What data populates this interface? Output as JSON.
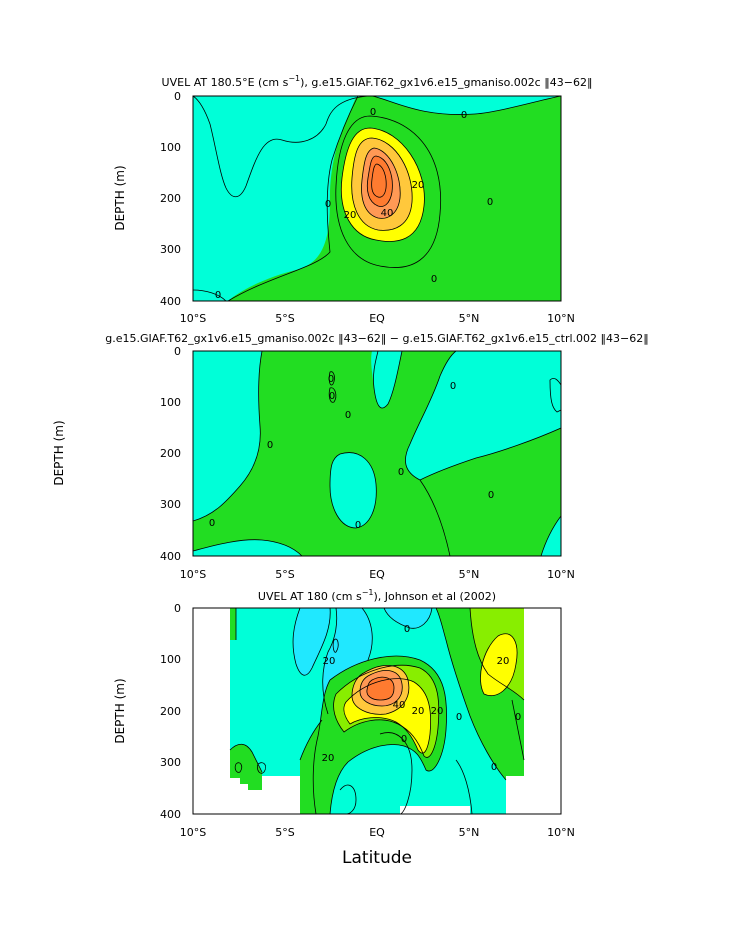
{
  "figure": {
    "xlabel": "Latitude",
    "x_ticks": [
      "10°S",
      "5°S",
      "EQ",
      "5°N",
      "10°N"
    ],
    "y_ticks": [
      "0",
      "100",
      "200",
      "300",
      "400"
    ]
  },
  "colors": {
    "fill_le_0": "#00ffd8",
    "fill_lowest": "#20e8ff",
    "fill_0_20": "#22dd22",
    "fill_20_30": "#88ee00",
    "fill_30_40": "#ffff00",
    "fill_40_50": "#ffc83c",
    "fill_50_60": "#ff9955",
    "fill_gt_60": "#ff7b30",
    "contour_line": "#000000"
  },
  "chart_data": [
    {
      "type": "heatmap",
      "panel": "top",
      "title_main": "UVEL AT 180.5°E (cm s",
      "title_sup": "−1",
      "title_rest": "), g.e15.GIAF.T62_gx1v6.e15_gmaniso.002c ‖43−62‖",
      "ylabel": "DEPTH (m)",
      "xlim": [
        -10,
        10
      ],
      "ylim": [
        400,
        0
      ],
      "contour_labels": [
        "0",
        "0",
        "0",
        "0",
        "0",
        "0",
        "20",
        "20",
        "40"
      ],
      "jet_core": {
        "latitude": 0.2,
        "depth_m": 160,
        "max_cm_s": 70
      }
    },
    {
      "type": "heatmap",
      "panel": "middle",
      "title": "g.e15.GIAF.T62_gx1v6.e15_gmaniso.002c ‖43−62‖ − g.e15.GIAF.T62_gx1v6.e15_ctrl.002 ‖43−62‖",
      "ylabel": "DEPTH (m)",
      "xlim": [
        -10,
        10
      ],
      "ylim": [
        400,
        0
      ],
      "contour_labels": [
        "0",
        "0",
        "0",
        "0",
        "0",
        "0",
        "0",
        "0",
        "0"
      ]
    },
    {
      "type": "heatmap",
      "panel": "bottom",
      "title_main": "UVEL AT 180 (cm s",
      "title_sup": "−1",
      "title_rest": "), Johnson et al (2002)",
      "ylabel": "DEPTH (m)",
      "xlim": [
        -10,
        10
      ],
      "ylim": [
        400,
        0
      ],
      "contour_labels": [
        "0",
        "0",
        "0",
        "0",
        "0",
        "20",
        "20",
        "20",
        "20",
        "20",
        "40"
      ],
      "jet_core": {
        "latitude": 0.3,
        "depth_m": 170,
        "max_cm_s": 70
      }
    }
  ]
}
